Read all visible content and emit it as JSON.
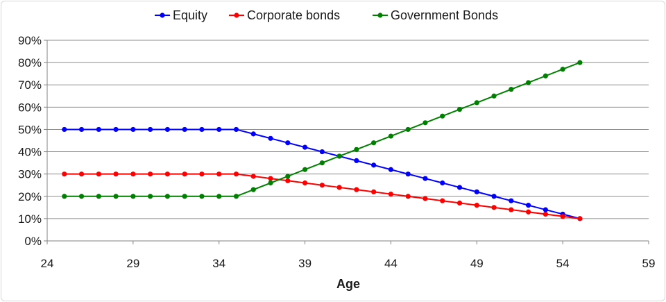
{
  "chart_data": {
    "type": "line",
    "title": "",
    "xlabel": "Age",
    "ylabel": "",
    "xlim": [
      24,
      59
    ],
    "ylim": [
      0,
      90
    ],
    "xticks": [
      24,
      29,
      34,
      39,
      44,
      49,
      54,
      59
    ],
    "yticks": [
      0,
      10,
      20,
      30,
      40,
      50,
      60,
      70,
      80,
      90
    ],
    "ytick_format": "percent",
    "grid": "horizontal",
    "legend_position": "top",
    "x": [
      25,
      26,
      27,
      28,
      29,
      30,
      31,
      32,
      33,
      34,
      35,
      36,
      37,
      38,
      39,
      40,
      41,
      42,
      43,
      44,
      45,
      46,
      47,
      48,
      49,
      50,
      51,
      52,
      53,
      54,
      55
    ],
    "series": [
      {
        "name": "Equity",
        "color": "#0000ff",
        "values": [
          50,
          50,
          50,
          50,
          50,
          50,
          50,
          50,
          50,
          50,
          50,
          48,
          46,
          44,
          42,
          40,
          38,
          36,
          34,
          32,
          30,
          28,
          26,
          24,
          22,
          20,
          18,
          16,
          14,
          12,
          10
        ]
      },
      {
        "name": "Corporate bonds",
        "color": "#ff0000",
        "values": [
          30,
          30,
          30,
          30,
          30,
          30,
          30,
          30,
          30,
          30,
          30,
          29,
          28,
          27,
          26,
          25,
          24,
          23,
          22,
          21,
          20,
          19,
          18,
          17,
          16,
          15,
          14,
          13,
          12,
          11,
          10
        ]
      },
      {
        "name": "Government Bonds",
        "color": "#008000",
        "values": [
          20,
          20,
          20,
          20,
          20,
          20,
          20,
          20,
          20,
          20,
          20,
          23,
          26,
          29,
          32,
          35,
          38,
          41,
          44,
          47,
          50,
          53,
          56,
          59,
          62,
          65,
          68,
          71,
          74,
          77,
          80
        ]
      }
    ]
  }
}
